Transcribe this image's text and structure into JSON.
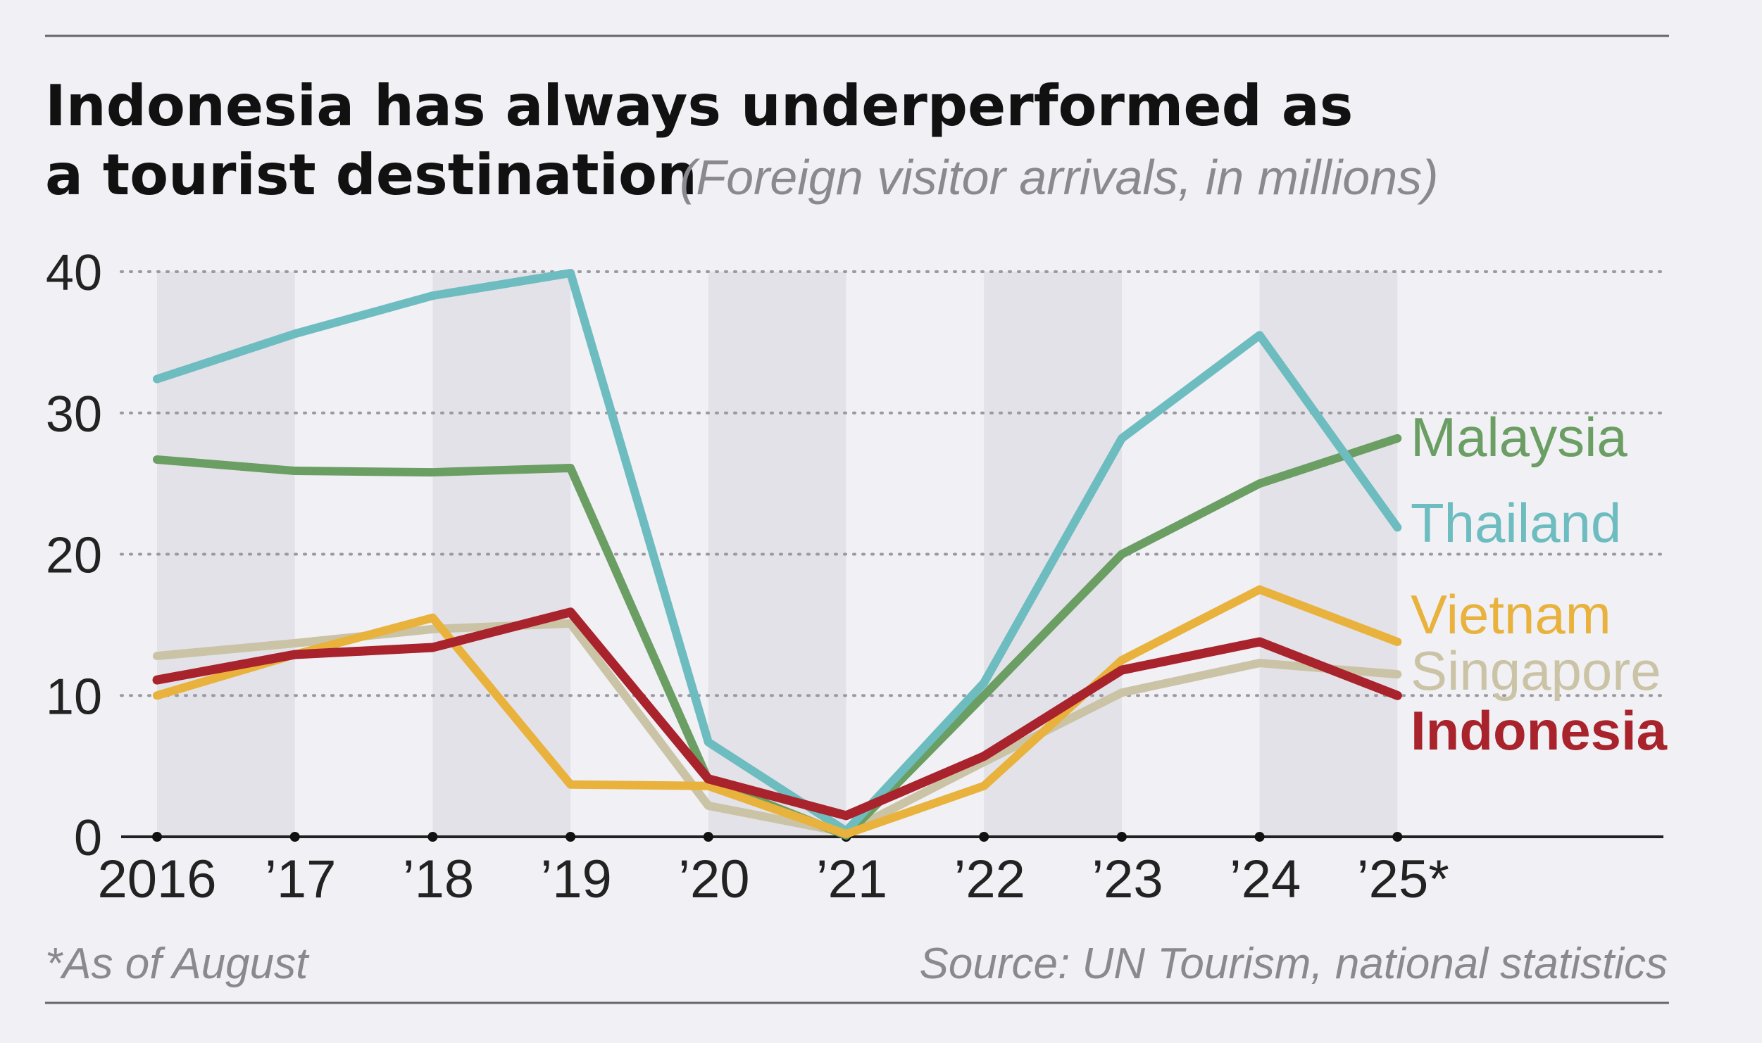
{
  "chart_data": {
    "type": "line",
    "title_line1": "Indonesia has always underperformed as",
    "title_line2": "a tourist destination",
    "subtitle": "(Foreign visitor arrivals, in millions)",
    "xlabel": "",
    "ylabel": "",
    "ylim": [
      0,
      40
    ],
    "y_ticks": [
      0,
      10,
      20,
      30,
      40
    ],
    "y_tick_labels": [
      "0",
      "10",
      "20",
      "30",
      "40"
    ],
    "x_tick_labels": [
      "2016",
      "’17",
      "’18",
      "’19",
      "’20",
      "’21",
      "’22",
      "’23",
      "’24",
      "’25*"
    ],
    "grid": true,
    "legend_placement": "direct labels at right end of lines",
    "series": [
      {
        "name": "Singapore",
        "color": "#cbc3a5",
        "bold": false,
        "values": [
          12.8,
          13.7,
          14.7,
          15.1,
          2.2,
          0.3,
          5.3,
          10.2,
          12.3,
          11.5
        ]
      },
      {
        "name": "Malaysia",
        "color": "#6a9e63",
        "bold": false,
        "values": [
          26.7,
          25.9,
          25.8,
          26.1,
          4.0,
          0.1,
          10.0,
          20.0,
          25.0,
          28.2
        ]
      },
      {
        "name": "Thailand",
        "color": "#6dbcbf",
        "bold": false,
        "values": [
          32.4,
          35.6,
          38.3,
          39.9,
          6.7,
          0.4,
          10.9,
          28.2,
          35.5,
          21.9
        ]
      },
      {
        "name": "Vietnam",
        "color": "#e8b23c",
        "bold": false,
        "values": [
          10.0,
          12.9,
          15.5,
          3.7,
          3.6,
          0.2,
          3.6,
          12.5,
          17.5,
          13.8
        ]
      },
      {
        "name": "Indonesia",
        "color": "#a8232b",
        "bold": true,
        "values": [
          11.1,
          12.9,
          13.4,
          15.9,
          4.1,
          1.5,
          5.7,
          11.8,
          13.8,
          10.0
        ]
      }
    ],
    "footnote": "*As of August",
    "source": "Source: UN Tourism, national statistics"
  }
}
